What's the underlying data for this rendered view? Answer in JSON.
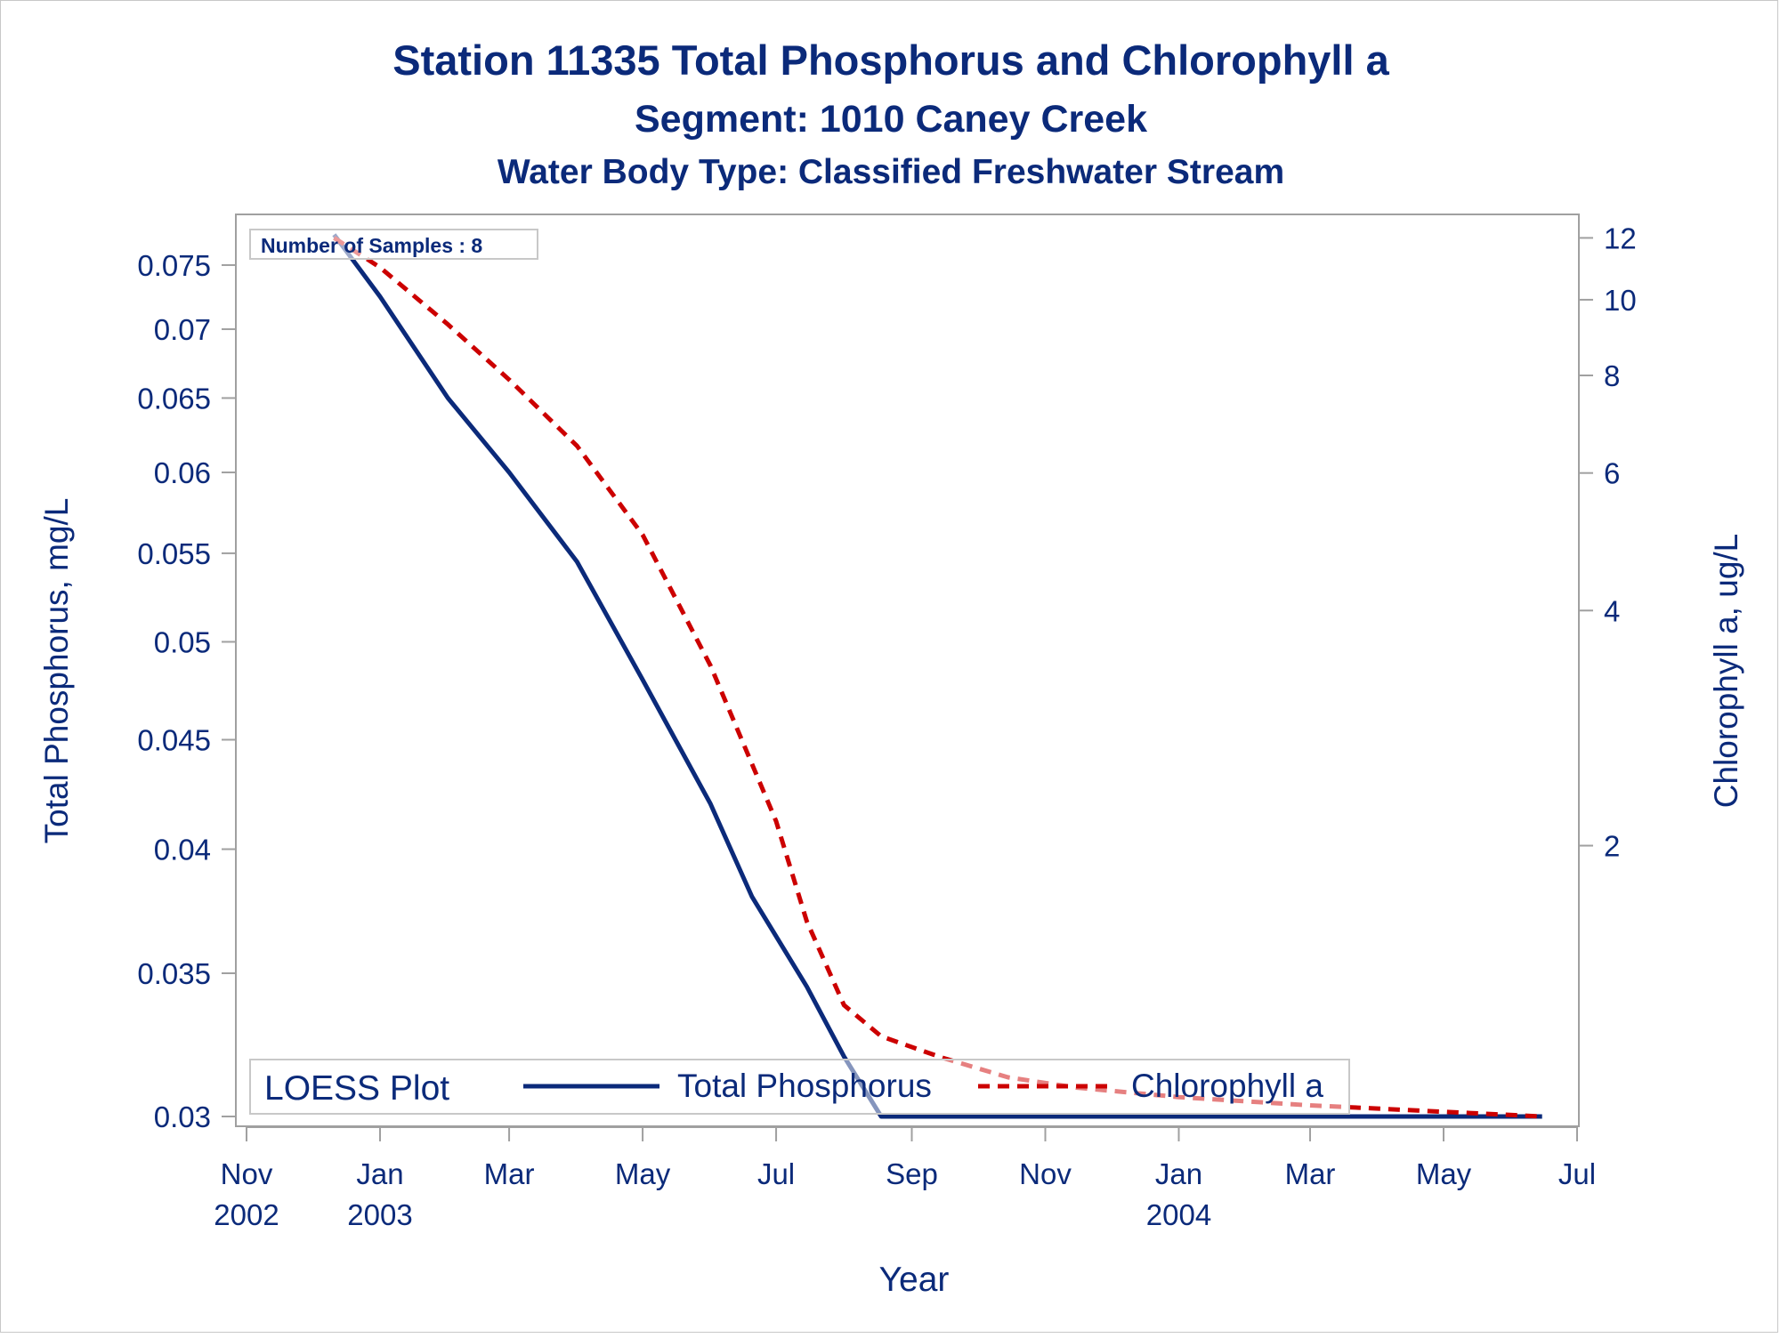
{
  "chart_data": {
    "type": "line",
    "titles": [
      "Station 11335   Total Phosphorus and Chlorophyll a",
      "Segment: 1010  Caney Creek",
      "Water Body Type: Classified Freshwater Stream"
    ],
    "xlabel": "Year",
    "ylabel_left": "Total Phosphorus, mg/L",
    "ylabel_right": "Chlorophyll a, ug/L",
    "x_ticks": [
      {
        "date": "2002-11-01",
        "label": [
          "Nov",
          "2002"
        ]
      },
      {
        "date": "2003-01-01",
        "label": [
          "Jan",
          "2003"
        ]
      },
      {
        "date": "2003-03-01",
        "label": [
          "Mar"
        ]
      },
      {
        "date": "2003-05-01",
        "label": [
          "May"
        ]
      },
      {
        "date": "2003-07-01",
        "label": [
          "Jul"
        ]
      },
      {
        "date": "2003-09-01",
        "label": [
          "Sep"
        ]
      },
      {
        "date": "2003-11-01",
        "label": [
          "Nov"
        ]
      },
      {
        "date": "2004-01-01",
        "label": [
          "Jan",
          "2004"
        ]
      },
      {
        "date": "2004-03-01",
        "label": [
          "Mar"
        ]
      },
      {
        "date": "2004-05-01",
        "label": [
          "May"
        ]
      },
      {
        "date": "2004-07-01",
        "label": [
          "Jul"
        ]
      }
    ],
    "xlim": [
      "2002-11-01",
      "2004-07-01"
    ],
    "y_left": {
      "scale": "log",
      "lim": [
        0.03,
        0.078
      ],
      "ticks": [
        0.03,
        0.035,
        0.04,
        0.045,
        0.05,
        0.055,
        0.06,
        0.065,
        0.07,
        0.075
      ],
      "tick_labels": [
        "0.03",
        "0.035",
        "0.04",
        "0.045",
        "0.05",
        "0.055",
        "0.06",
        "0.065",
        "0.07",
        "0.075"
      ]
    },
    "y_right": {
      "scale": "log",
      "lim": [
        0.9,
        12.3
      ],
      "ticks": [
        2,
        4,
        6,
        8,
        10,
        12
      ],
      "tick_labels": [
        "2",
        "4",
        "6",
        "8",
        "10",
        "12"
      ]
    },
    "series": [
      {
        "name": "Total Phosphorus",
        "axis": "left",
        "color": "#0b2a7a",
        "style": "solid",
        "points": [
          [
            "2002-12-11",
            0.0775
          ],
          [
            "2003-01-01",
            0.0725
          ],
          [
            "2003-02-01",
            0.065
          ],
          [
            "2003-03-01",
            0.06
          ],
          [
            "2003-04-01",
            0.0545
          ],
          [
            "2003-05-01",
            0.048
          ],
          [
            "2003-06-01",
            0.042
          ],
          [
            "2003-06-20",
            0.038
          ],
          [
            "2003-07-15",
            0.0345
          ],
          [
            "2003-08-01",
            0.032
          ],
          [
            "2003-08-18",
            0.03
          ],
          [
            "2003-10-01",
            0.03
          ],
          [
            "2004-01-01",
            0.03
          ],
          [
            "2004-06-15",
            0.03
          ]
        ]
      },
      {
        "name": "Chlorophyll a",
        "axis": "right",
        "color": "#cc0000",
        "style": "dashed",
        "points": [
          [
            "2002-12-11",
            12.0
          ],
          [
            "2003-01-01",
            11.0
          ],
          [
            "2003-02-01",
            9.3
          ],
          [
            "2003-03-01",
            7.9
          ],
          [
            "2003-04-01",
            6.5
          ],
          [
            "2003-05-01",
            5.0
          ],
          [
            "2003-06-01",
            3.4
          ],
          [
            "2003-07-01",
            2.15
          ],
          [
            "2003-07-15",
            1.6
          ],
          [
            "2003-08-01",
            1.25
          ],
          [
            "2003-08-18",
            1.14
          ],
          [
            "2003-09-15",
            1.07
          ],
          [
            "2003-10-15",
            1.01
          ],
          [
            "2003-11-15",
            0.98
          ],
          [
            "2004-01-01",
            0.953
          ],
          [
            "2004-03-01",
            0.93
          ],
          [
            "2004-06-15",
            0.9
          ]
        ]
      }
    ],
    "inset_label": "Number of Samples : 8",
    "legend": {
      "title": "LOESS Plot",
      "placement": "bottom-left",
      "entries": [
        "Total Phosphorus",
        "Chlorophyll a"
      ]
    },
    "grid": false
  }
}
